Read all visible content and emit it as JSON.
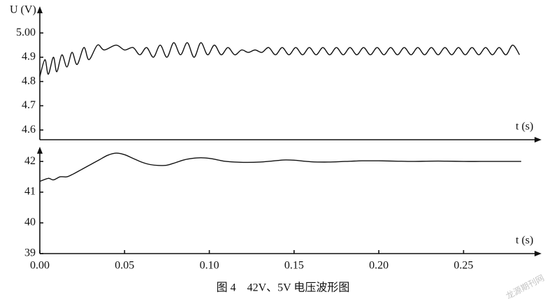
{
  "chart_data": [
    {
      "type": "line",
      "ylabel": "U (V)",
      "xlabel": "t (s)",
      "color": "#111111",
      "xlim": [
        0,
        0.296
      ],
      "ylim": [
        4.56,
        5.11
      ],
      "yticks": [
        4.6,
        4.7,
        4.8,
        4.9,
        {
          "value": 5.0,
          "label": "5.00"
        }
      ],
      "x": [
        0,
        0.003,
        0.005,
        0.008,
        0.01,
        0.013,
        0.016,
        0.019,
        0.022,
        0.026,
        0.029,
        0.034,
        0.038,
        0.045,
        0.05,
        0.055,
        0.059,
        0.063,
        0.067,
        0.071,
        0.075,
        0.079,
        0.083,
        0.087,
        0.091,
        0.095,
        0.099,
        0.103,
        0.107,
        0.111,
        0.115,
        0.119,
        0.123,
        0.127,
        0.131,
        0.135,
        0.139,
        0.143,
        0.147,
        0.151,
        0.155,
        0.159,
        0.163,
        0.167,
        0.171,
        0.175,
        0.179,
        0.183,
        0.187,
        0.191,
        0.195,
        0.199,
        0.203,
        0.207,
        0.211,
        0.215,
        0.219,
        0.223,
        0.227,
        0.231,
        0.235,
        0.239,
        0.243,
        0.247,
        0.251,
        0.255,
        0.259,
        0.263,
        0.267,
        0.271,
        0.275,
        0.279,
        0.283
      ],
      "values": [
        4.82,
        4.89,
        4.83,
        4.9,
        4.84,
        4.91,
        4.86,
        4.92,
        4.87,
        4.94,
        4.89,
        4.95,
        4.93,
        4.95,
        4.93,
        4.94,
        4.91,
        4.94,
        4.9,
        4.95,
        4.9,
        4.96,
        4.91,
        4.96,
        4.9,
        4.96,
        4.91,
        4.95,
        4.91,
        4.94,
        4.91,
        4.93,
        4.92,
        4.93,
        4.92,
        4.94,
        4.91,
        4.94,
        4.91,
        4.94,
        4.91,
        4.94,
        4.91,
        4.94,
        4.91,
        4.94,
        4.91,
        4.94,
        4.91,
        4.94,
        4.91,
        4.94,
        4.91,
        4.94,
        4.91,
        4.94,
        4.91,
        4.94,
        4.91,
        4.94,
        4.91,
        4.94,
        4.91,
        4.94,
        4.91,
        4.94,
        4.91,
        4.94,
        4.91,
        4.94,
        4.91,
        4.95,
        4.91
      ]
    },
    {
      "type": "line",
      "xlabel": "t (s)",
      "color": "#111111",
      "xlim": [
        0,
        0.296
      ],
      "ylim": [
        39,
        42.48
      ],
      "yticks": [
        39,
        40,
        41,
        42
      ],
      "xticks": [
        {
          "value": 0,
          "label": "0.00"
        },
        0.05,
        {
          "value": 0.1,
          "label": "0.10"
        },
        0.15,
        {
          "value": 0.2,
          "label": "0.20"
        },
        0.25
      ],
      "x": [
        0,
        0.005,
        0.008,
        0.012,
        0.016,
        0.02,
        0.025,
        0.03,
        0.035,
        0.04,
        0.045,
        0.05,
        0.055,
        0.06,
        0.065,
        0.07,
        0.075,
        0.08,
        0.085,
        0.09,
        0.095,
        0.1,
        0.105,
        0.11,
        0.12,
        0.13,
        0.14,
        0.145,
        0.15,
        0.16,
        0.17,
        0.18,
        0.19,
        0.2,
        0.21,
        0.22,
        0.23,
        0.24,
        0.25,
        0.26,
        0.27,
        0.284
      ],
      "values": [
        41.35,
        41.45,
        41.4,
        41.5,
        41.5,
        41.6,
        41.75,
        41.9,
        42.05,
        42.2,
        42.27,
        42.22,
        42.1,
        41.98,
        41.9,
        41.87,
        41.88,
        41.96,
        42.05,
        42.1,
        42.12,
        42.1,
        42.05,
        42.0,
        41.97,
        41.98,
        42.03,
        42.05,
        42.04,
        41.99,
        41.98,
        42.0,
        42.02,
        42.02,
        42.01,
        42.0,
        42.01,
        42.01,
        42.0,
        42.0,
        42.0,
        42.0
      ]
    }
  ],
  "caption": "图 4　42V、5V 电压波形图",
  "watermark": "龙源期刊网"
}
